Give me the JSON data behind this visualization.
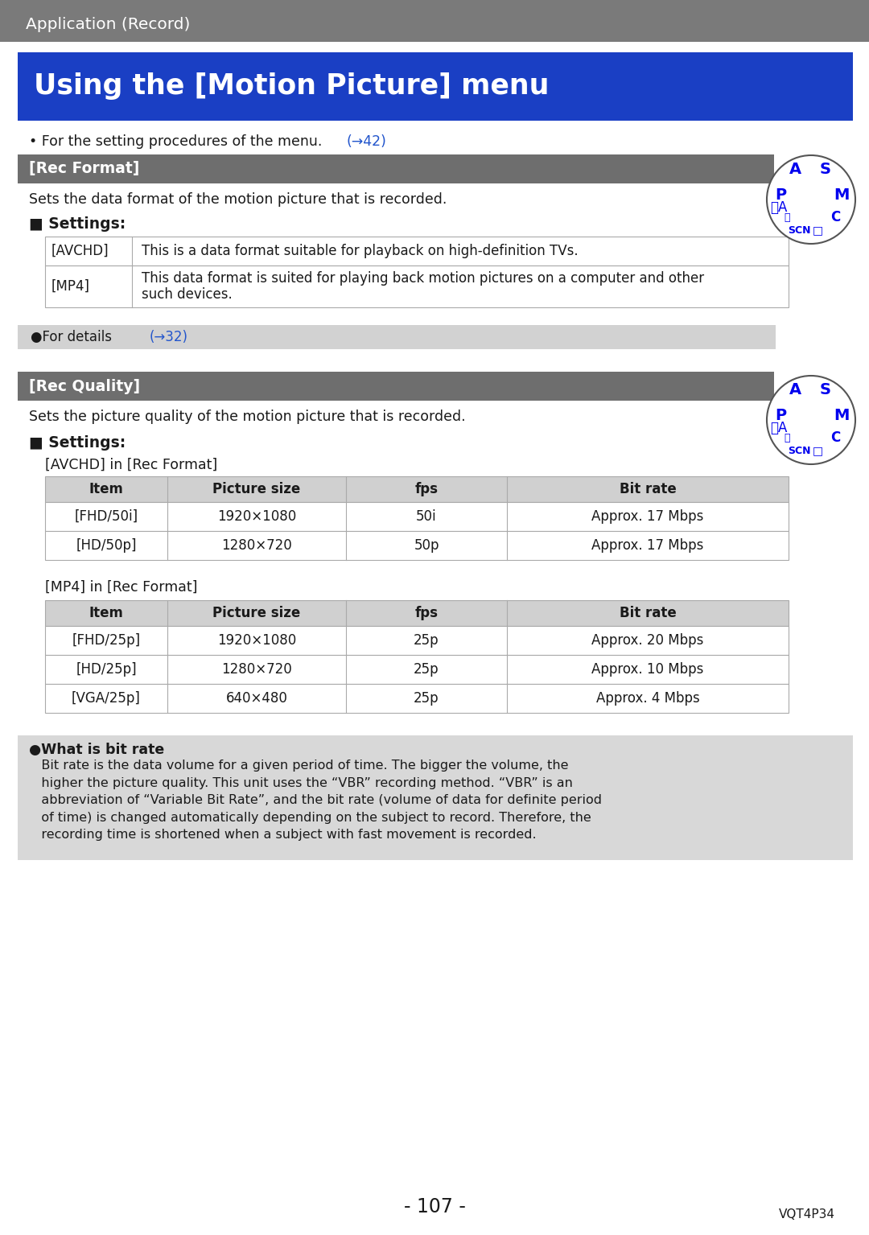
{
  "page_bg": "#ffffff",
  "header_bg": "#7a7a7a",
  "header_text": "Application (Record)",
  "header_text_color": "#ffffff",
  "title_bg": "#1a3fc4",
  "title_text": "Using the [Motion Picture] menu",
  "title_text_color": "#ffffff",
  "section1_header_bg": "#6e6e6e",
  "section1_header_text": "[Rec Format]",
  "section1_header_text_color": "#ffffff",
  "section1_desc": "Sets the data format of the motion picture that is recorded.",
  "settings_label": "■ Settings:",
  "table1_col1": [
    "[AVCHD]",
    "[MP4]"
  ],
  "table1_col2": [
    "This is a data format suitable for playback on high-definition TVs.",
    "This data format is suited for playing back motion pictures on a computer and other\nsuch devices."
  ],
  "for_details_bg": "#d2d2d2",
  "for_details_text": "●For details ",
  "for_details_link": "(→32)",
  "section2_header_bg": "#6e6e6e",
  "section2_header_text": "[Rec Quality]",
  "section2_header_text_color": "#ffffff",
  "section2_desc": "Sets the picture quality of the motion picture that is recorded.",
  "avchd_subtitle": "[AVCHD] in [Rec Format]",
  "avchd_table_headers": [
    "Item",
    "Picture size",
    "fps",
    "Bit rate"
  ],
  "avchd_table_rows": [
    [
      "[FHD/50i]",
      "1920×1080",
      "50i",
      "Approx. 17 Mbps"
    ],
    [
      "[HD/50p]",
      "1280×720",
      "50p",
      "Approx. 17 Mbps"
    ]
  ],
  "mp4_subtitle": "[MP4] in [Rec Format]",
  "mp4_table_headers": [
    "Item",
    "Picture size",
    "fps",
    "Bit rate"
  ],
  "mp4_table_rows": [
    [
      "[FHD/25p]",
      "1920×1080",
      "25p",
      "Approx. 20 Mbps"
    ],
    [
      "[HD/25p]",
      "1280×720",
      "25p",
      "Approx. 10 Mbps"
    ],
    [
      "[VGA/25p]",
      "640×480",
      "25p",
      "Approx. 4 Mbps"
    ]
  ],
  "note_bg": "#d8d8d8",
  "note_title": "●What is bit rate",
  "note_body": "   Bit rate is the data volume for a given period of time. The bigger the volume, the\n   higher the picture quality. This unit uses the “VBR” recording method. “VBR” is an\n   abbreviation of “Variable Bit Rate”, and the bit rate (volume of data for definite period\n   of time) is changed automatically depending on the subject to record. Therefore, the\n   recording time is shortened when a subject with fast movement is recorded.",
  "page_number": "- 107 -",
  "page_code": "VQT4P34",
  "table_border_color": "#aaaaaa",
  "table_header_bg": "#d0d0d0",
  "text_color": "#1a1a1a",
  "link_color": "#2255cc",
  "dial_labels": [
    [
      "P",
      -28,
      -22,
      13
    ],
    [
      "A",
      0,
      -35,
      13
    ],
    [
      "S",
      28,
      -22,
      13
    ],
    [
      "M",
      38,
      5,
      13
    ],
    [
      "C",
      28,
      28,
      11
    ],
    [
      "□",
      5,
      38,
      10
    ],
    [
      "SCN",
      -20,
      35,
      9
    ],
    [
      "ⓘA",
      -40,
      10,
      11
    ]
  ]
}
